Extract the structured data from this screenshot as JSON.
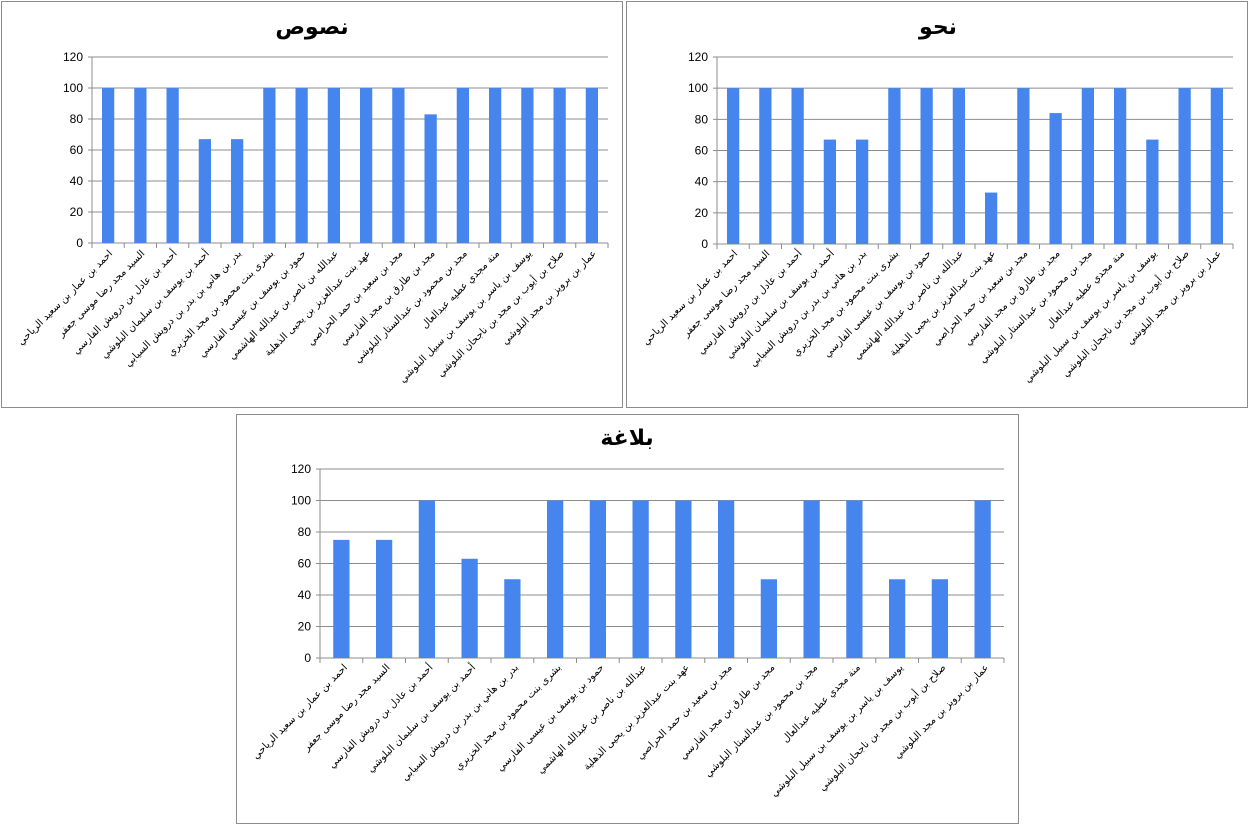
{
  "categories": [
    "احمد بن عمار بن سعيد الرياحي",
    "السيد مجد رضا موسى جعفر",
    "أحمد بن عادل بن درويش الفارسي",
    "أحمد بن يوسف بن سليمان البلوشي",
    "بدر بن هاني بن بدر بن درويش السيابي",
    "بشرى بنت محمود بن مجد الخزيري",
    "حمود بن يوسف بن عيسى الفارسي",
    "عبدالله بن ناصر بن عبدالله الهاشمي",
    "عهد بنت عبدالعزيز بن يحيى الذهلية",
    "مجد بن سعيد بن حمد الحراصي",
    "مجد بن طارق بن مجد الفارسي",
    "مجد بن محمود بن عبدالستار البلوشي",
    "منة مجدي عطيه عبدالعال",
    "يوسف بن ياسر بن يوسف بن سبيل البلوشي",
    "صلاح بن أيوب بن مجد بن ناجحان البلوشي",
    "عمار بن برويز بن مجد البلوشي"
  ],
  "chart_data": [
    {
      "type": "bar",
      "title": "نصوص",
      "xlabel": "",
      "ylabel": "",
      "ylim": [
        0,
        120
      ],
      "yticks": [
        "0",
        "20",
        "40",
        "60",
        "80",
        "100",
        "120"
      ],
      "grid": true,
      "legend": "none",
      "values": [
        100,
        100,
        100,
        67,
        67,
        100,
        100,
        100,
        100,
        100,
        83,
        100,
        100,
        100,
        100,
        100
      ]
    },
    {
      "type": "bar",
      "title": "نحو",
      "xlabel": "",
      "ylabel": "",
      "ylim": [
        0,
        120
      ],
      "yticks": [
        "0",
        "20",
        "40",
        "60",
        "80",
        "100",
        "120"
      ],
      "grid": true,
      "legend": "none",
      "values": [
        100,
        100,
        100,
        67,
        67,
        100,
        100,
        100,
        33,
        100,
        84,
        100,
        100,
        67,
        100,
        100
      ]
    },
    {
      "type": "bar",
      "title": "بلاغة",
      "xlabel": "",
      "ylabel": "",
      "ylim": [
        0,
        120
      ],
      "yticks": [
        "0",
        "20",
        "40",
        "60",
        "80",
        "100",
        "120"
      ],
      "grid": true,
      "legend": "none",
      "values": [
        75,
        75,
        100,
        63,
        50,
        100,
        100,
        100,
        100,
        100,
        50,
        100,
        100,
        50,
        50,
        100
      ]
    }
  ],
  "colors": {
    "bar": "#4684ee",
    "grid": "#8c8c8c",
    "axis": "#8c8c8c",
    "border": "#8c8c8c"
  }
}
